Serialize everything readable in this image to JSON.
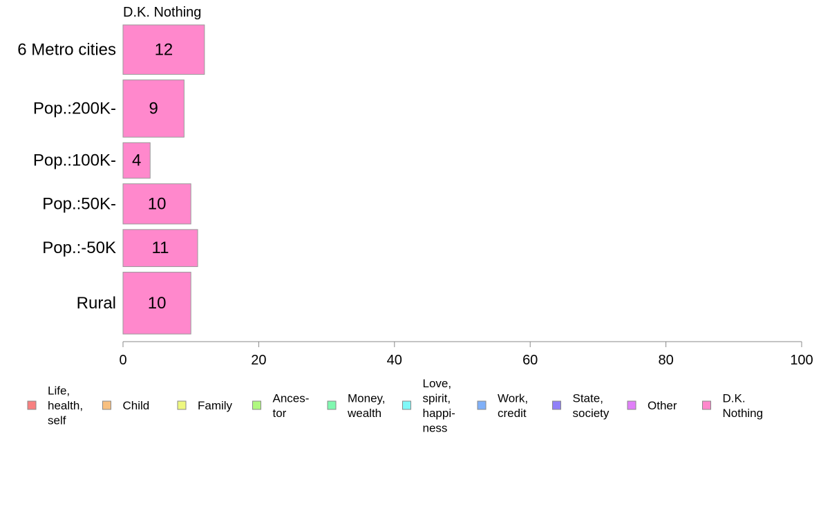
{
  "chart_data": {
    "type": "bar",
    "orientation": "horizontal",
    "panel_title": "D.K. Nothing",
    "categories": [
      "6 Metro cities",
      "Pop.:200K-",
      "Pop.:100K-",
      "Pop.:50K-",
      "Pop.:-50K",
      "Rural"
    ],
    "category_weights": [
      1.6,
      1.85,
      1.15,
      1.3,
      1.2,
      2.0
    ],
    "values": [
      12,
      9,
      4,
      10,
      11,
      10
    ],
    "bar_labels": [
      "12",
      "9",
      "4",
      "10",
      "11",
      "10"
    ],
    "xlim": [
      0,
      100
    ],
    "xticks": [
      0,
      20,
      40,
      60,
      80,
      100
    ],
    "xtick_labels": [
      "0",
      "20",
      "40",
      "60",
      "80",
      "100"
    ],
    "bar_color": "#ff88cc",
    "bar_edge_color": "#999999",
    "axis_color": "#888888",
    "grid": false,
    "legend_position": "bottom",
    "legend": [
      {
        "label": "Life,\nhealth,\nself",
        "color": "#f88080"
      },
      {
        "label": "Child",
        "color": "#f8c080"
      },
      {
        "label": "Family",
        "color": "#eef880"
      },
      {
        "label": "Ances-\ntor",
        "color": "#b0f880"
      },
      {
        "label": "Money,\nwealth",
        "color": "#80f8b0"
      },
      {
        "label": "Love,\nspirit,\nhappi-\nness",
        "color": "#80f8f8"
      },
      {
        "label": "Work,\ncredit",
        "color": "#80b0f8"
      },
      {
        "label": "State,\nsociety",
        "color": "#9080f8"
      },
      {
        "label": "Other",
        "color": "#e080f8"
      },
      {
        "label": "D.K.\nNothing",
        "color": "#ff88cc"
      }
    ]
  }
}
